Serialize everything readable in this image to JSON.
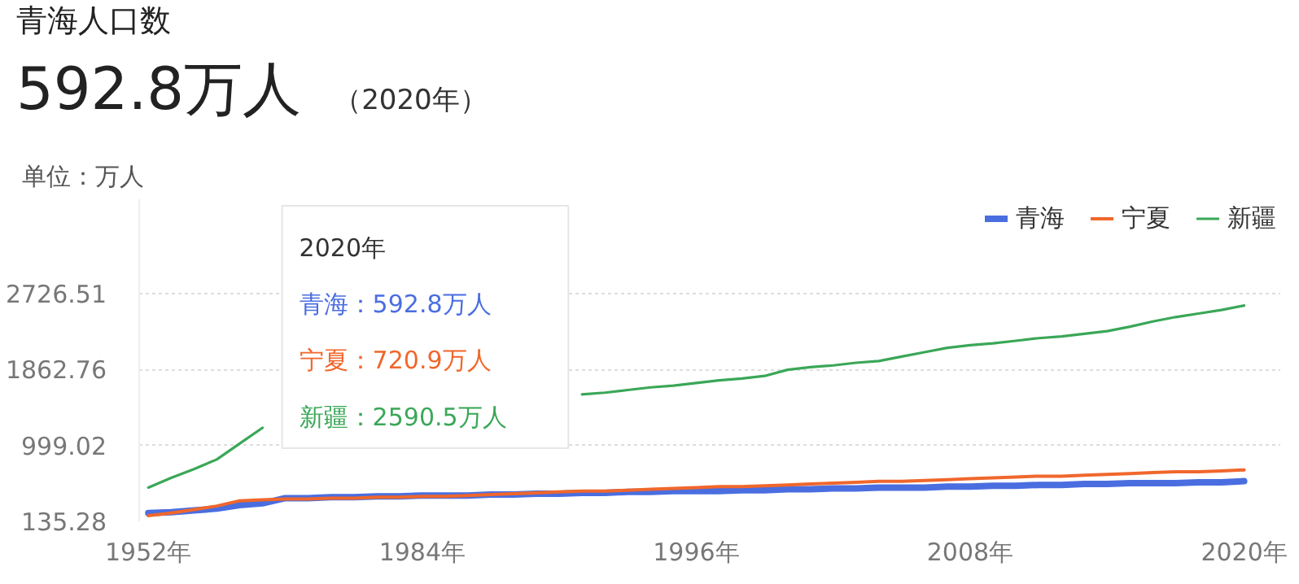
{
  "chart_data": {
    "type": "line",
    "title": "青海人口数",
    "subtitle": "592.8万人",
    "ylabel": "单位：万人",
    "annotations": [
      "（2020年）",
      "2020年",
      "青海：592.8万人",
      "宁夏：720.9万人",
      "新疆：2590.5万人"
    ],
    "categories": [
      "1952年",
      null,
      null,
      null,
      null,
      null,
      null,
      null,
      null,
      null,
      null,
      null,
      "1984年",
      null,
      null,
      null,
      null,
      null,
      null,
      null,
      null,
      null,
      null,
      null,
      "1996年",
      null,
      null,
      null,
      null,
      null,
      null,
      null,
      null,
      null,
      null,
      null,
      "2008年",
      null,
      null,
      null,
      null,
      null,
      null,
      null,
      null,
      null,
      null,
      null,
      "2020年"
    ],
    "series": [
      {
        "name": "青海",
        "color": "#4a6ee0",
        "values": [
          230,
          240,
          260,
          280,
          320,
          340,
          400,
          400,
          410,
          410,
          420,
          420,
          430,
          430,
          430,
          440,
          440,
          450,
          450,
          460,
          460,
          470,
          470,
          480,
          480,
          480,
          490,
          490,
          500,
          500,
          510,
          510,
          520,
          520,
          520,
          530,
          530,
          540,
          540,
          550,
          550,
          560,
          560,
          570,
          570,
          570,
          580,
          580,
          592.8
        ]
      },
      {
        "name": "宁夏",
        "color": "#f0672c",
        "values": [
          200,
          230,
          270,
          310,
          370,
          380,
          390,
          390,
          400,
          400,
          410,
          410,
          420,
          420,
          430,
          440,
          450,
          460,
          470,
          480,
          480,
          490,
          500,
          510,
          520,
          530,
          530,
          540,
          550,
          560,
          570,
          580,
          590,
          590,
          600,
          610,
          620,
          630,
          640,
          650,
          650,
          660,
          670,
          680,
          690,
          700,
          700,
          710,
          720.9
        ]
      },
      {
        "name": "新疆",
        "color": "#3aa757",
        "values": [
          520,
          630,
          730,
          840,
          1020,
          1200,
          null,
          null,
          null,
          null,
          null,
          null,
          null,
          null,
          null,
          null,
          null,
          null,
          null,
          1580,
          1600,
          1630,
          1660,
          1680,
          1710,
          1740,
          1760,
          1790,
          1860,
          1890,
          1910,
          1940,
          1960,
          2010,
          2060,
          2110,
          2140,
          2160,
          2190,
          2220,
          2240,
          2270,
          2300,
          2350,
          2410,
          2460,
          2500,
          2540,
          2590.5
        ]
      }
    ],
    "ylim": [
      135.28,
      3800
    ],
    "yticks": [
      135.28,
      999.02,
      1862.76,
      2726.51
    ],
    "grid": "y",
    "legend": "top right",
    "line_style": "solid"
  }
}
